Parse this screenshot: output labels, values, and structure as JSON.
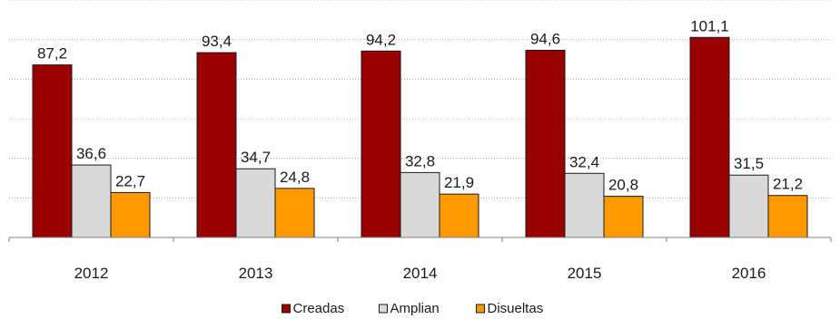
{
  "chart_data": {
    "type": "bar",
    "categories": [
      "2012",
      "2013",
      "2014",
      "2015",
      "2016"
    ],
    "series": [
      {
        "name": "Creadas",
        "color": "#990000",
        "values": [
          87.2,
          93.4,
          94.2,
          94.6,
          101.1
        ]
      },
      {
        "name": "Amplian",
        "color": "#d9d9d9",
        "values": [
          36.6,
          34.7,
          32.8,
          32.4,
          31.5
        ]
      },
      {
        "name": "Disueltas",
        "color": "#ff9900",
        "values": [
          22.7,
          24.8,
          21.9,
          20.8,
          21.2
        ]
      }
    ],
    "ylim": [
      0,
      120
    ],
    "grid": true,
    "legend_position": "bottom",
    "title": "",
    "xlabel": "",
    "ylabel": ""
  }
}
